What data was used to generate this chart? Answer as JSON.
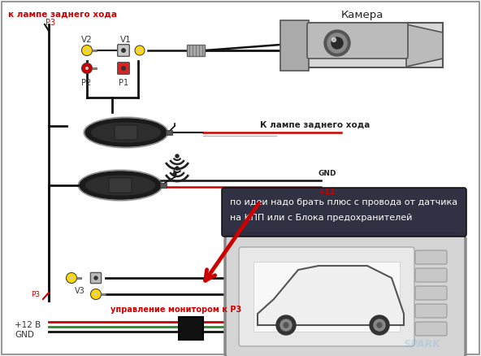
{
  "bg_color": "#ffffff",
  "border_color": "#888888",
  "title_text": "к лампе заднего хода",
  "title_color": "#cc0000",
  "label_P3_top": "P3",
  "label_V2": "V2",
  "label_V1": "V1",
  "label_P2": "P2",
  "label_P1": "P1",
  "label_camera": "Камера",
  "label_back_lamp": "К лампе заднего хода",
  "label_GND": "GND",
  "label_plus12": "+12",
  "label_V3": "V3",
  "label_P3_bot": "P3",
  "label_monitor": "управление монитором к Р3",
  "label_plus12V": "+12 В",
  "label_GND2": "GND",
  "tooltip_line1": "по идеи надо брать плюс с провода от датчика",
  "tooltip_line2": "на КПП или с Блока предохранителей",
  "tooltip_bg": "#2a2a3e",
  "tooltip_text_color": "#ffffff",
  "arrow_color": "#cc0000",
  "wire_black": "#111111",
  "wire_red": "#cc0000",
  "wire_green": "#228B22",
  "connector_yellow": "#FFD700",
  "connector_red": "#cc0000",
  "connector_gray": "#aaaaaa",
  "spark_text": "SPARK"
}
